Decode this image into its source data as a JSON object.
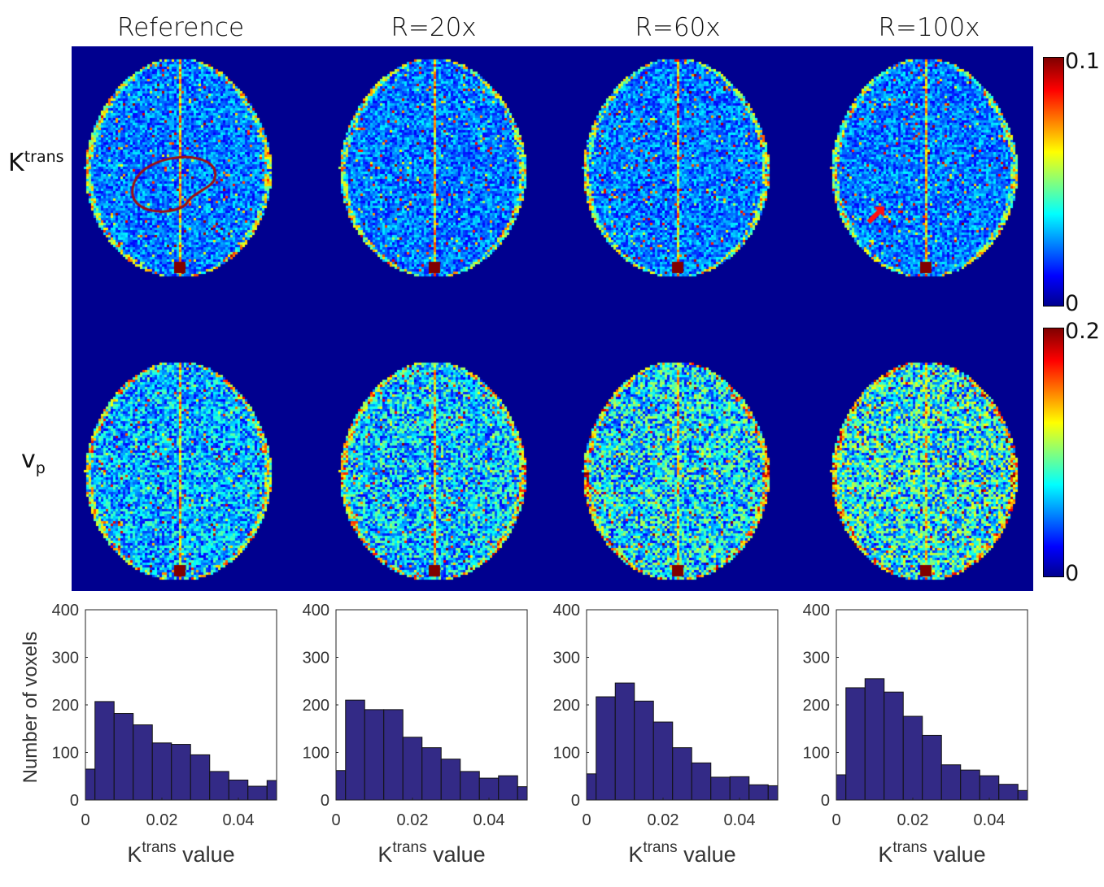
{
  "columns": [
    "Reference",
    "R=20x",
    "R=60x",
    "R=100x"
  ],
  "rows": [
    {
      "label_main": "K",
      "label_script": "trans",
      "script_type": "sup"
    },
    {
      "label_main": "v",
      "label_script": "p",
      "script_type": "sub"
    }
  ],
  "colorbars": [
    {
      "max_label": "0.1",
      "min_label": "0"
    },
    {
      "max_label": "0.2",
      "min_label": "0"
    }
  ],
  "colors": {
    "map_background": "#00008f",
    "bar_fill": "#332a86",
    "contour": "#a01010",
    "arrow": "#ff1010"
  },
  "colormap": "jet",
  "chart_data": [
    {
      "type": "bar",
      "title": "Reference",
      "ylabel": "Number of voxels",
      "xlabel_main": "K",
      "xlabel_sup": "trans",
      "xlabel_rest": " value",
      "xlim": [
        0,
        0.05
      ],
      "ylim": [
        0,
        400
      ],
      "xticks": [
        "0",
        "0.02",
        "0.04"
      ],
      "yticks": [
        "0",
        "100",
        "200",
        "300",
        "400"
      ],
      "bin_width": 0.005,
      "bin_centers": [
        0,
        0.005,
        0.01,
        0.015,
        0.02,
        0.025,
        0.03,
        0.035,
        0.04,
        0.045,
        0.05
      ],
      "values": [
        65,
        207,
        182,
        158,
        120,
        117,
        95,
        60,
        42,
        29,
        41
      ]
    },
    {
      "type": "bar",
      "title": "R=20x",
      "ylabel": "",
      "xlabel_main": "K",
      "xlabel_sup": "trans",
      "xlabel_rest": " value",
      "xlim": [
        0,
        0.05
      ],
      "ylim": [
        0,
        400
      ],
      "xticks": [
        "0",
        "0.02",
        "0.04"
      ],
      "yticks": [
        "0",
        "100",
        "200",
        "300",
        "400"
      ],
      "bin_width": 0.005,
      "bin_centers": [
        0,
        0.005,
        0.01,
        0.015,
        0.02,
        0.025,
        0.03,
        0.035,
        0.04,
        0.045,
        0.05
      ],
      "values": [
        62,
        210,
        190,
        190,
        132,
        110,
        86,
        60,
        46,
        51,
        28
      ]
    },
    {
      "type": "bar",
      "title": "R=60x",
      "ylabel": "",
      "xlabel_main": "K",
      "xlabel_sup": "trans",
      "xlabel_rest": " value",
      "xlim": [
        0,
        0.05
      ],
      "ylim": [
        0,
        400
      ],
      "xticks": [
        "0",
        "0.02",
        "0.04"
      ],
      "yticks": [
        "0",
        "100",
        "200",
        "300",
        "400"
      ],
      "bin_width": 0.005,
      "bin_centers": [
        0,
        0.005,
        0.01,
        0.015,
        0.02,
        0.025,
        0.03,
        0.035,
        0.04,
        0.045,
        0.05
      ],
      "values": [
        55,
        217,
        246,
        208,
        164,
        110,
        78,
        48,
        49,
        32,
        30
      ]
    },
    {
      "type": "bar",
      "title": "R=100x",
      "ylabel": "",
      "xlabel_main": "K",
      "xlabel_sup": "trans",
      "xlabel_rest": " value",
      "xlim": [
        0,
        0.05
      ],
      "ylim": [
        0,
        400
      ],
      "xticks": [
        "0",
        "0.02",
        "0.04"
      ],
      "yticks": [
        "0",
        "100",
        "200",
        "300",
        "400"
      ],
      "bin_width": 0.005,
      "bin_centers": [
        0,
        0.005,
        0.01,
        0.015,
        0.02,
        0.025,
        0.03,
        0.035,
        0.04,
        0.045,
        0.05
      ],
      "values": [
        53,
        236,
        255,
        227,
        176,
        136,
        74,
        63,
        51,
        33,
        20
      ]
    }
  ]
}
